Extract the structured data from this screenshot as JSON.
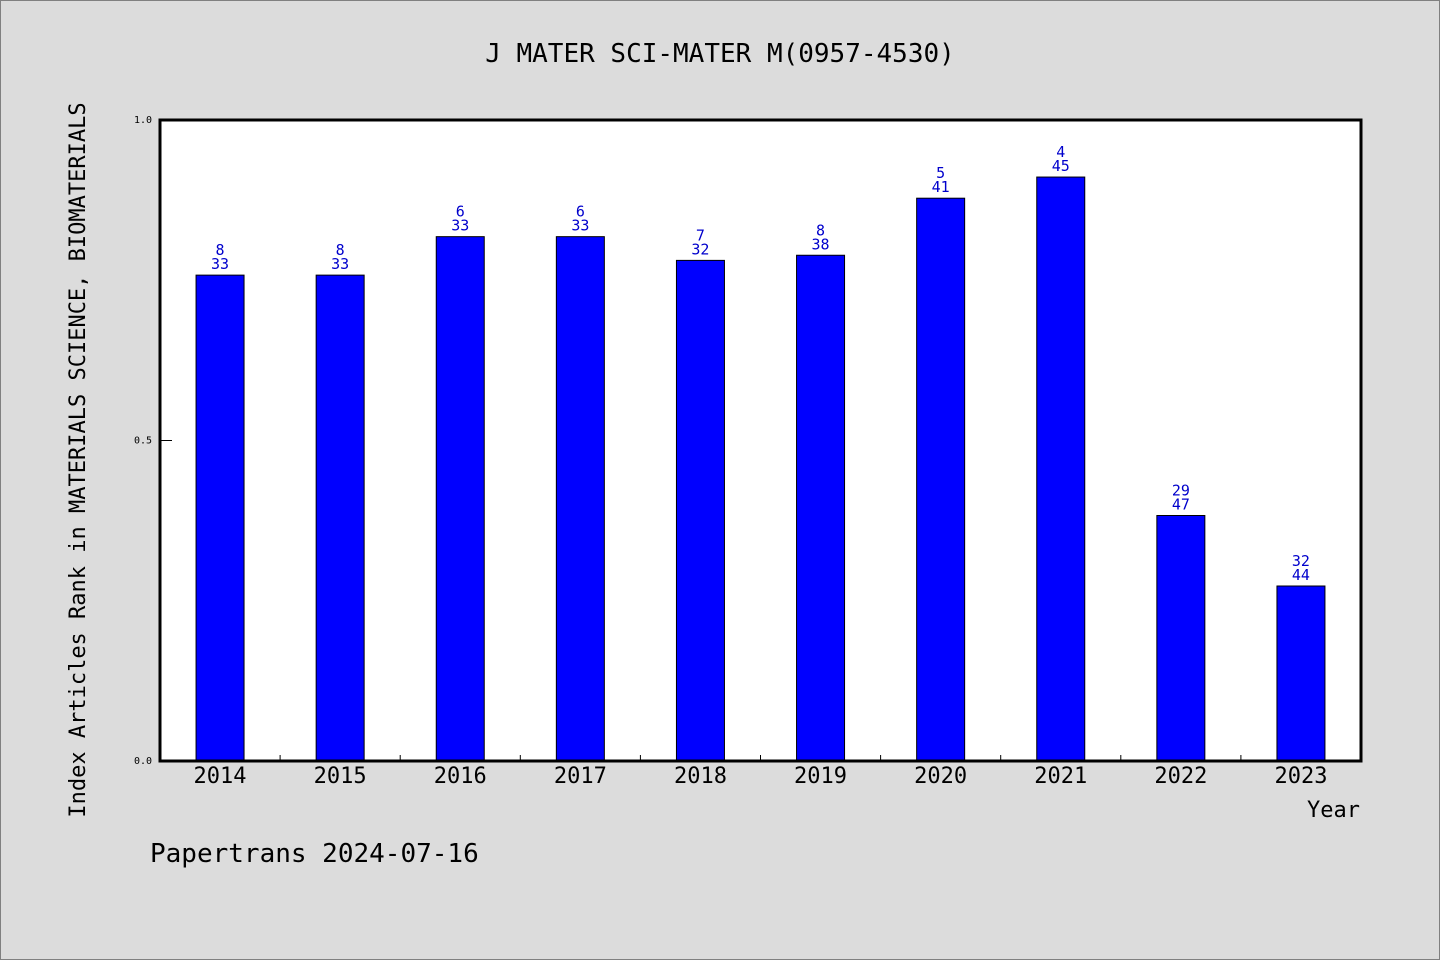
{
  "chart_data": {
    "type": "bar",
    "title": "J MATER SCI-MATER M(0957-4530)",
    "xlabel": "Year",
    "ylabel": "Index Articles Rank in MATERIALS SCIENCE, BIOMATERIALS",
    "categories": [
      "2014",
      "2015",
      "2016",
      "2017",
      "2018",
      "2019",
      "2020",
      "2021",
      "2022",
      "2023"
    ],
    "values": [
      0.758,
      0.758,
      0.818,
      0.818,
      0.781,
      0.789,
      0.878,
      0.911,
      0.383,
      0.273
    ],
    "rank": [
      "8",
      "8",
      "6",
      "6",
      "7",
      "8",
      "5",
      "4",
      "29",
      "32"
    ],
    "total": [
      "33",
      "33",
      "33",
      "33",
      "32",
      "38",
      "41",
      "45",
      "47",
      "44"
    ],
    "ylim": [
      0,
      1.0
    ],
    "yticks": [
      "0.0",
      "0.5",
      "1.0"
    ],
    "bar_color": "#0000ff",
    "label_color": "#0000cc",
    "grid": false,
    "legend": "none"
  },
  "footer": "Papertrans 2024-07-16"
}
